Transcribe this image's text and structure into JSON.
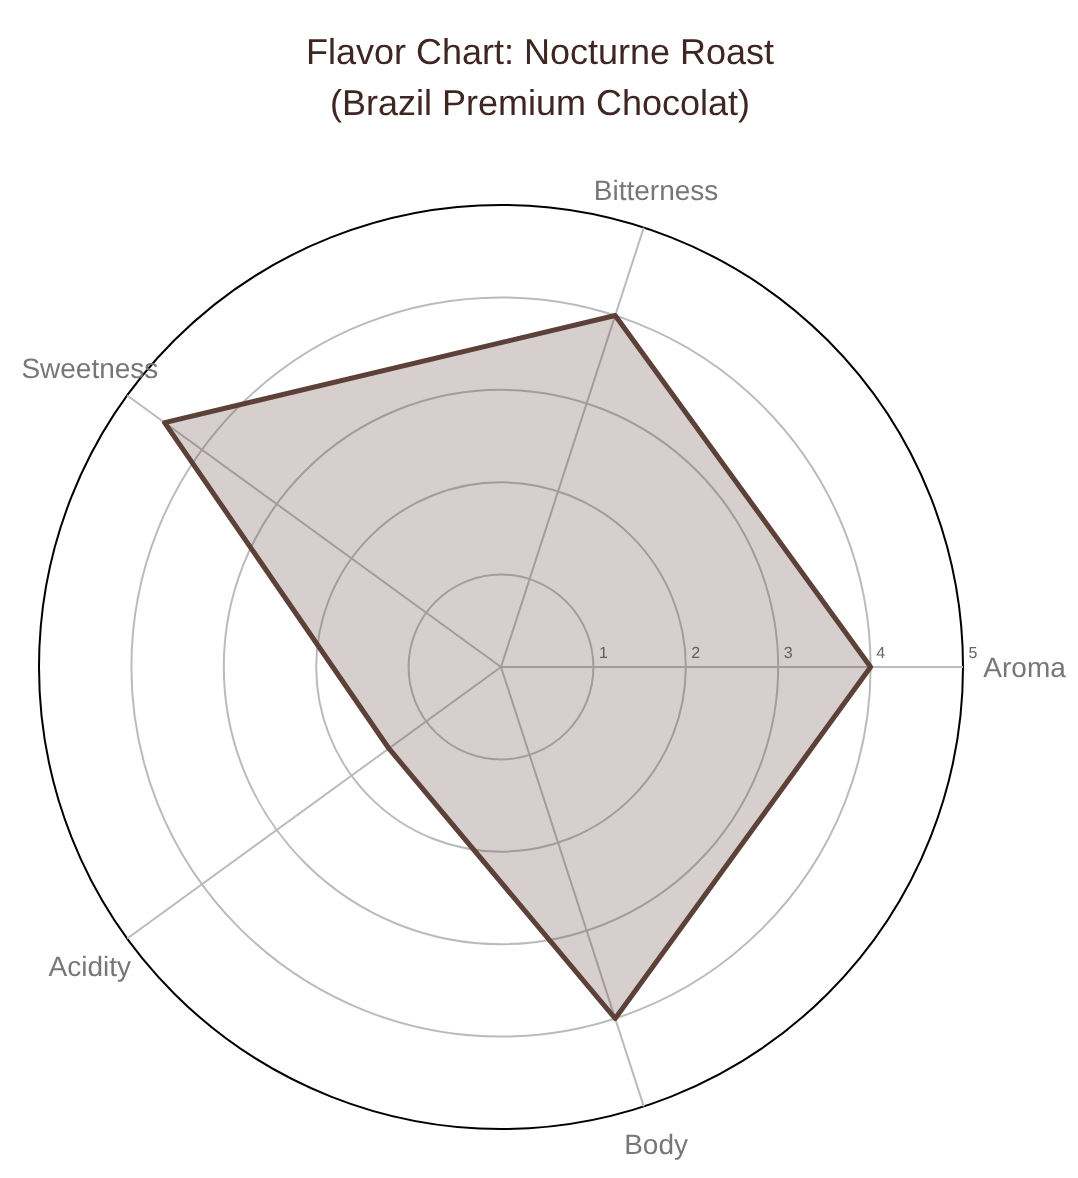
{
  "chart_data": {
    "type": "radar",
    "title": "Flavor Chart: Nocturne Roast\n(Brazil Premium Chocolat)",
    "categories": [
      "Bitterness",
      "Aroma",
      "Body",
      "Acidity",
      "Sweetness"
    ],
    "series": [
      {
        "color": "#5d4037",
        "values": [
          4,
          4,
          4,
          1.5,
          4.5
        ]
      }
    ],
    "ylim": [
      0,
      5
    ],
    "yticks": [
      1,
      2,
      3,
      4,
      5
    ],
    "grid": true
  }
}
